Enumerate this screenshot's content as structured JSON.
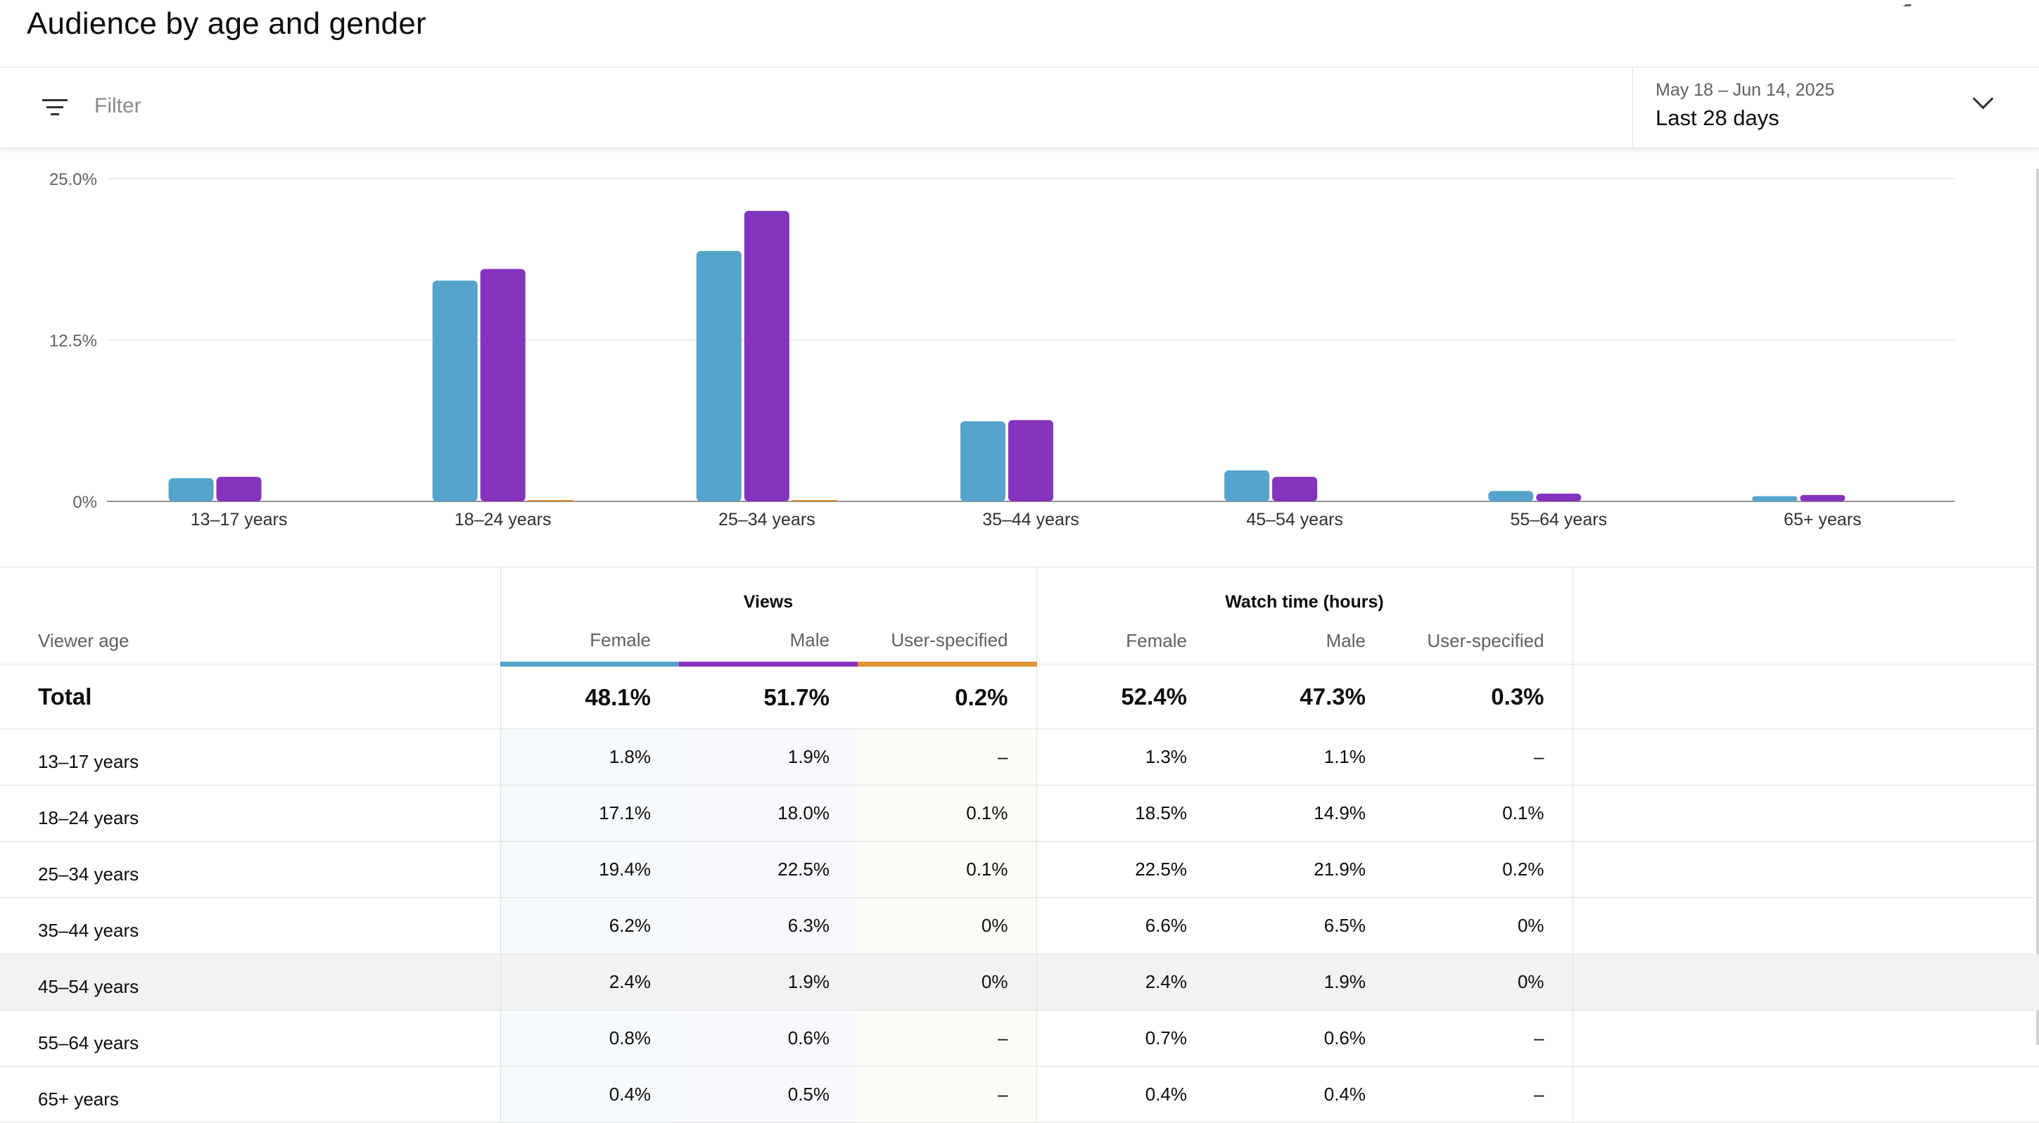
{
  "page": {
    "title": "Audience by age and gender"
  },
  "filter": {
    "label": "Filter",
    "icon": "filter-icon"
  },
  "date_picker": {
    "range": "May 18 – Jun 14, 2025",
    "period": "Last 28 days",
    "icon": "chevron-down-icon"
  },
  "colors": {
    "female": "#56a4cc",
    "male": "#8434bf",
    "user_specified": "#e09332"
  },
  "chart_data": {
    "type": "bar",
    "categories": [
      "13–17 years",
      "18–24 years",
      "25–34 years",
      "35–44 years",
      "45–54 years",
      "55–64 years",
      "65+ years"
    ],
    "series": [
      {
        "color": "#56a4cc",
        "values": [
          1.8,
          17.1,
          19.4,
          6.2,
          2.4,
          0.8,
          0.4
        ]
      },
      {
        "color": "#8434bf",
        "values": [
          1.9,
          18.0,
          22.5,
          6.3,
          1.9,
          0.6,
          0.5
        ]
      },
      {
        "color": "#e09332",
        "values": [
          0,
          0.1,
          0.1,
          0,
          0,
          0,
          0
        ]
      }
    ],
    "yticks": [
      "0%",
      "12.5%",
      "25.0%"
    ],
    "ylim": [
      0,
      25
    ],
    "grid": true
  },
  "table": {
    "groups": {
      "views": "Views",
      "watch_time": "Watch time (hours)"
    },
    "headers": {
      "age": "Viewer age",
      "female": "Female",
      "male": "Male",
      "user": "User-specified"
    },
    "total": {
      "label": "Total",
      "v_female": "48.1%",
      "v_male": "51.7%",
      "v_user": "0.2%",
      "w_female": "52.4%",
      "w_male": "47.3%",
      "w_user": "0.3%"
    },
    "rows": [
      {
        "age": "13–17 years",
        "v_female": "1.8%",
        "v_male": "1.9%",
        "v_user": "–",
        "w_female": "1.3%",
        "w_male": "1.1%",
        "w_user": "–"
      },
      {
        "age": "18–24 years",
        "v_female": "17.1%",
        "v_male": "18.0%",
        "v_user": "0.1%",
        "w_female": "18.5%",
        "w_male": "14.9%",
        "w_user": "0.1%"
      },
      {
        "age": "25–34 years",
        "v_female": "19.4%",
        "v_male": "22.5%",
        "v_user": "0.1%",
        "w_female": "22.5%",
        "w_male": "21.9%",
        "w_user": "0.2%"
      },
      {
        "age": "35–44 years",
        "v_female": "6.2%",
        "v_male": "6.3%",
        "v_user": "0%",
        "w_female": "6.6%",
        "w_male": "6.5%",
        "w_user": "0%"
      },
      {
        "age": "45–54 years",
        "v_female": "2.4%",
        "v_male": "1.9%",
        "v_user": "0%",
        "w_female": "2.4%",
        "w_male": "1.9%",
        "w_user": "0%"
      },
      {
        "age": "55–64 years",
        "v_female": "0.8%",
        "v_male": "0.6%",
        "v_user": "–",
        "w_female": "0.7%",
        "w_male": "0.6%",
        "w_user": "–"
      },
      {
        "age": "65+ years",
        "v_female": "0.4%",
        "v_male": "0.5%",
        "v_user": "–",
        "w_female": "0.4%",
        "w_male": "0.4%",
        "w_user": "–"
      }
    ]
  }
}
